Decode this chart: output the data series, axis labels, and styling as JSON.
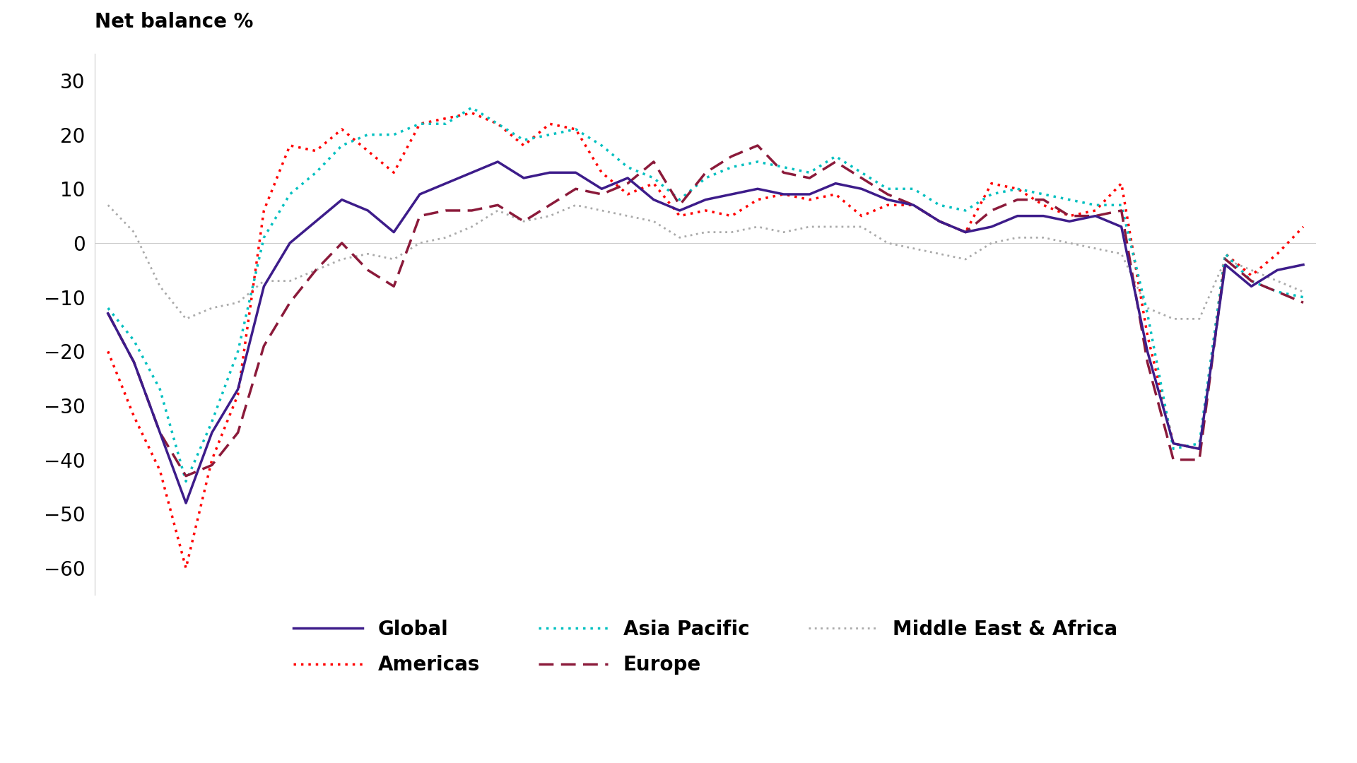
{
  "ylabel": "Net balance %",
  "ylim": [
    -65,
    35
  ],
  "yticks": [
    -60,
    -50,
    -40,
    -30,
    -20,
    -10,
    0,
    10,
    20,
    30
  ],
  "background_color": "#ffffff",
  "series": {
    "Global": {
      "color": "#3d1c8a",
      "linestyle": "solid",
      "linewidth": 2.5,
      "zorder": 5,
      "values": [
        -13,
        -22,
        -35,
        -48,
        -35,
        -27,
        -8,
        0,
        4,
        8,
        6,
        2,
        9,
        11,
        13,
        15,
        12,
        13,
        13,
        10,
        12,
        8,
        6,
        8,
        9,
        10,
        9,
        9,
        11,
        10,
        8,
        7,
        4,
        2,
        3,
        5,
        5,
        4,
        5,
        3,
        -20,
        -37,
        -38,
        -4,
        -8,
        -5,
        -4
      ]
    },
    "Americas": {
      "color": "#ff0000",
      "linestyle": "dotted",
      "linewidth": 2.5,
      "zorder": 4,
      "values": [
        -20,
        -32,
        -42,
        -60,
        -40,
        -28,
        6,
        18,
        17,
        21,
        17,
        13,
        22,
        23,
        24,
        22,
        18,
        22,
        21,
        13,
        9,
        11,
        5,
        6,
        5,
        8,
        9,
        8,
        9,
        5,
        7,
        7,
        4,
        2,
        11,
        10,
        7,
        5,
        6,
        11,
        -17,
        -37,
        -38,
        -2,
        -6,
        -2,
        3
      ]
    },
    "Asia Pacific": {
      "color": "#00c0c0",
      "linestyle": "dotted",
      "linewidth": 2.5,
      "zorder": 4,
      "values": [
        -12,
        -18,
        -27,
        -44,
        -33,
        -20,
        1,
        9,
        13,
        18,
        20,
        20,
        22,
        22,
        25,
        22,
        19,
        20,
        21,
        18,
        14,
        12,
        8,
        12,
        14,
        15,
        14,
        13,
        16,
        13,
        10,
        10,
        7,
        6,
        9,
        10,
        9,
        8,
        7,
        7,
        -13,
        -38,
        -37,
        -2,
        -7,
        -9,
        -10
      ]
    },
    "Europe": {
      "color": "#8b1a3a",
      "linestyle": "dashed",
      "linewidth": 2.5,
      "zorder": 4,
      "values": [
        -13,
        -22,
        -35,
        -43,
        -41,
        -35,
        -19,
        -11,
        -5,
        0,
        -5,
        -8,
        5,
        6,
        6,
        7,
        4,
        7,
        10,
        9,
        11,
        15,
        7,
        13,
        16,
        18,
        13,
        12,
        15,
        12,
        9,
        7,
        4,
        2,
        6,
        8,
        8,
        5,
        5,
        6,
        -22,
        -40,
        -40,
        -3,
        -7,
        -9,
        -11
      ]
    },
    "Middle East & Africa": {
      "color": "#aaaaaa",
      "linestyle": "dotted",
      "linewidth": 2.0,
      "zorder": 3,
      "values": [
        7,
        2,
        -8,
        -14,
        -12,
        -11,
        -7,
        -7,
        -5,
        -3,
        -2,
        -3,
        0,
        1,
        3,
        6,
        4,
        5,
        7,
        6,
        5,
        4,
        1,
        2,
        2,
        3,
        2,
        3,
        3,
        3,
        0,
        -1,
        -2,
        -3,
        0,
        1,
        1,
        0,
        -1,
        -2,
        -12,
        -14,
        -14,
        -3,
        -5,
        -7,
        -9
      ]
    }
  },
  "legend_order": [
    "Global",
    "Americas",
    "Asia Pacific",
    "Europe",
    "Middle East & Africa"
  ]
}
